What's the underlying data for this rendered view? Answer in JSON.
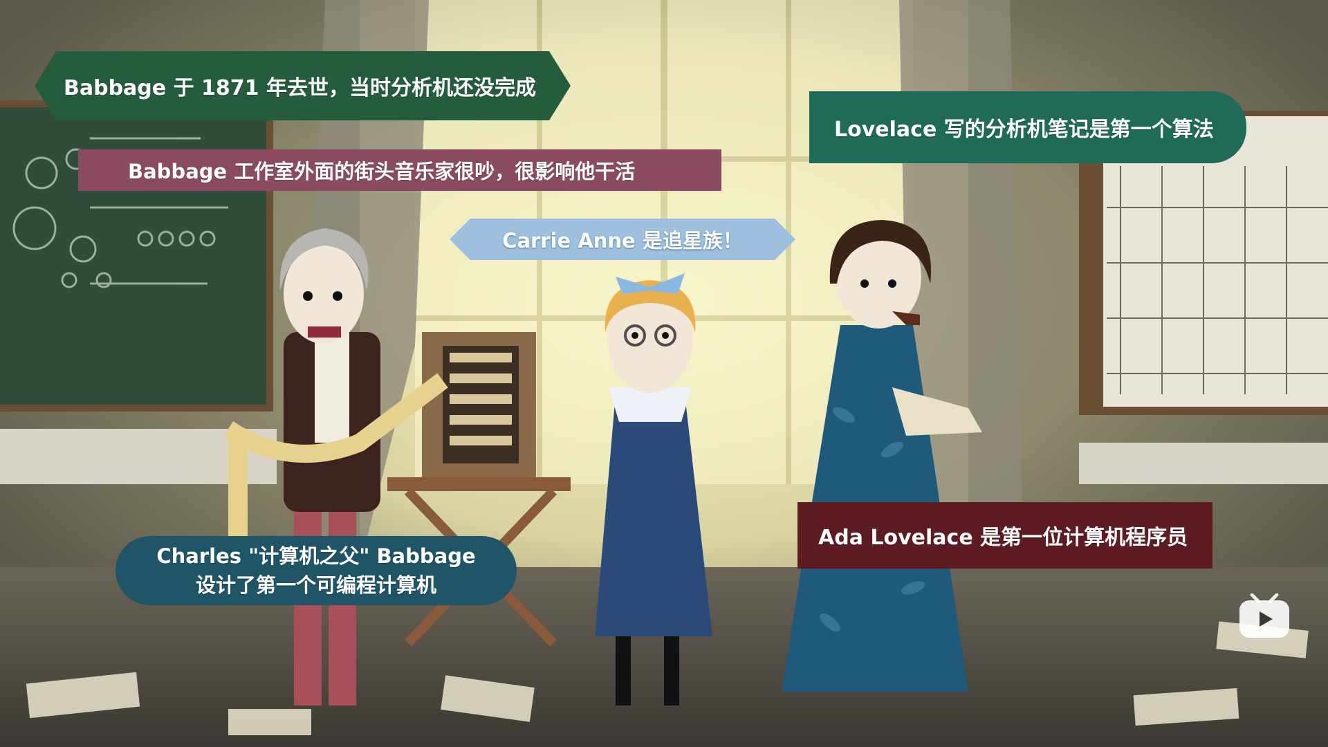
{
  "captions": {
    "babbage_death": "Babbage 于 1871 年去世，当时分析机还没完成",
    "street_musicians": "Babbage 工作室外面的街头音乐家很吵，很影响他干活",
    "carrie_anne": "Carrie Anne 是追星族！",
    "lovelace_notes": "Lovelace 写的分析机笔记是第一个算法",
    "ada_programmer": "Ada Lovelace 是第一位计算机程序员",
    "charles_line1": "Charles \"计算机之父\" Babbage",
    "charles_line2": "设计了第一个可编程计算机"
  },
  "colors": {
    "caption_green": "#255c3d",
    "caption_maroon": "#8a4a60",
    "caption_lightblue": "#9cc0de",
    "caption_teal": "#1f6b57",
    "caption_darkred": "#5e1b22",
    "caption_darkteal": "#1f5566"
  },
  "icons": {
    "watermark": "video-logo-icon"
  }
}
